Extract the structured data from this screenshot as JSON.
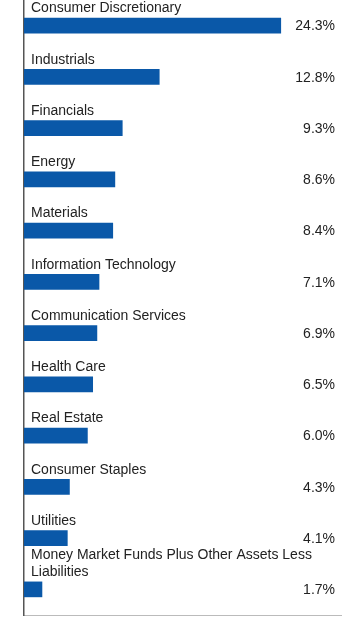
{
  "chart_data": {
    "type": "bar",
    "orientation": "horizontal",
    "categories": [
      "Consumer Discretionary",
      "Industrials",
      "Financials",
      "Energy",
      "Materials",
      "Information Technology",
      "Communication Services",
      "Health Care",
      "Real Estate",
      "Consumer Staples",
      "Utilities",
      "Money Market Funds Plus Other Assets Less Liabilities"
    ],
    "values": [
      24.3,
      12.8,
      9.3,
      8.6,
      8.4,
      7.1,
      6.9,
      6.5,
      6.0,
      4.3,
      4.1,
      1.7
    ],
    "value_labels": [
      "24.3%",
      "12.8%",
      "9.3%",
      "8.6%",
      "8.4%",
      "7.1%",
      "6.9%",
      "6.5%",
      "6.0%",
      "4.3%",
      "4.1%",
      "1.7%"
    ],
    "color": "#0a58a8",
    "xlim": [
      0,
      30
    ],
    "data_labels": true,
    "tick_labels": false,
    "grid": false
  }
}
